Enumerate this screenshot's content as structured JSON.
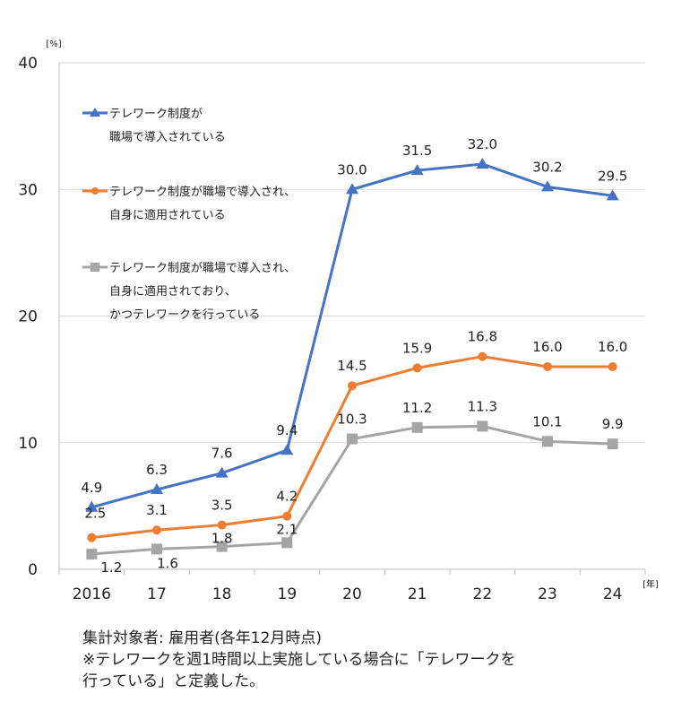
{
  "chart_data": {
    "type": "line",
    "categories": [
      "2016",
      "17",
      "18",
      "19",
      "20",
      "21",
      "22",
      "23",
      "24"
    ],
    "x_unit": "[年]",
    "y_unit": "[%]",
    "ylim": [
      0,
      40
    ],
    "yticks": [
      0,
      10,
      20,
      30,
      40
    ],
    "grid": true,
    "legend_position": "top-left",
    "series": [
      {
        "name_lines": [
          "テレワーク制度が",
          "職場で導入されている"
        ],
        "color": "#4472C4",
        "marker": "triangle",
        "values": [
          4.9,
          6.3,
          7.6,
          9.4,
          30.0,
          31.5,
          32.0,
          30.2,
          29.5
        ],
        "labels": [
          "4.9",
          "6.3",
          "7.6",
          "9.4",
          "30.0",
          "31.5",
          "32.0",
          "30.2",
          "29.5"
        ]
      },
      {
        "name_lines": [
          "テレワーク制度が職場で導入され、",
          "自身に適用されている"
        ],
        "color": "#ED7D31",
        "marker": "circle",
        "values": [
          2.5,
          3.1,
          3.5,
          4.2,
          14.5,
          15.9,
          16.8,
          16.0,
          16.0
        ],
        "labels": [
          "2.5",
          "3.1",
          "3.5",
          "4.2",
          "14.5",
          "15.9",
          "16.8",
          "16.0",
          "16.0"
        ]
      },
      {
        "name_lines": [
          "テレワーク制度が職場で導入され、",
          "自身に適用されており、",
          "かつテレワークを行っている"
        ],
        "color": "#A5A5A5",
        "marker": "square",
        "values": [
          1.2,
          1.6,
          1.8,
          2.1,
          10.3,
          11.2,
          11.3,
          10.1,
          9.9
        ],
        "labels": [
          "1.2",
          "1.6",
          "1.8",
          "2.1",
          "10.3",
          "11.2",
          "11.3",
          "10.1",
          "9.9"
        ]
      }
    ]
  },
  "notes": {
    "line1": "集計対象者: 雇用者(各年12月時点)",
    "line2": "※テレワークを週1時間以上実施している場合に「テレワークを",
    "line3": "行っている」と定義した。"
  }
}
